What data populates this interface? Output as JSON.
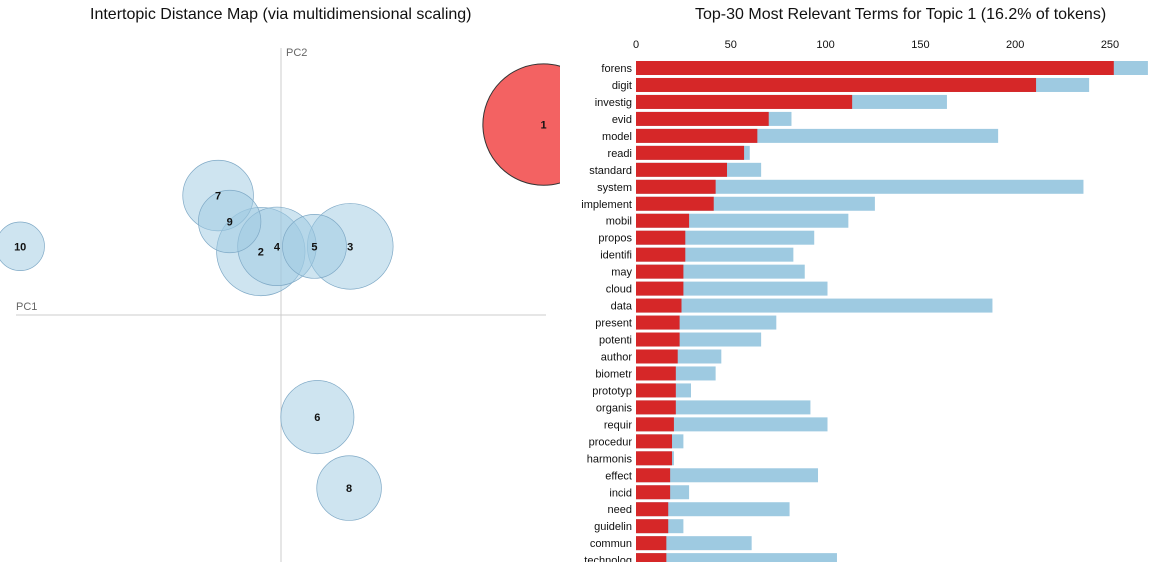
{
  "chart_data": [
    {
      "type": "scatter",
      "title": "Intertopic Distance Map (via multidimensional scaling)",
      "xlabel": "PC1",
      "ylabel": "PC2",
      "selected_topic": "1",
      "colors": {
        "bubble": "#9ecae1",
        "selected": "#f03b3b",
        "axis": "#cccccc"
      },
      "topics": [
        {
          "label": "1",
          "x": 0.455,
          "y": 0.33,
          "share": 16.2
        },
        {
          "label": "2",
          "x": -0.035,
          "y": 0.11,
          "share": 8.6
        },
        {
          "label": "3",
          "x": 0.12,
          "y": 0.119,
          "share": 8.1
        },
        {
          "label": "4",
          "x": -0.007,
          "y": 0.119,
          "share": 6.8
        },
        {
          "label": "5",
          "x": 0.058,
          "y": 0.119,
          "share": 4.5
        },
        {
          "label": "6",
          "x": 0.063,
          "y": -0.177,
          "share": 5.9
        },
        {
          "label": "7",
          "x": -0.109,
          "y": 0.207,
          "share": 5.5
        },
        {
          "label": "8",
          "x": 0.118,
          "y": -0.3,
          "share": 4.6
        },
        {
          "label": "9",
          "x": -0.089,
          "y": 0.162,
          "share": 4.3
        },
        {
          "label": "10",
          "x": -0.452,
          "y": 0.119,
          "share": 2.6
        }
      ]
    },
    {
      "type": "bar",
      "title": "Top-30 Most Relevant Terms for Topic 1 (16.2% of tokens)",
      "xlim": [
        0,
        270
      ],
      "ticks": [
        0,
        50,
        100,
        150,
        200,
        250
      ],
      "colors": {
        "topic": "#d62728",
        "overall": "#9ecae1"
      },
      "series": [
        {
          "name": "topic_frequency",
          "values": [
            252,
            211,
            114,
            70,
            64,
            57,
            48,
            42,
            41,
            28,
            26,
            26,
            25,
            25,
            24,
            23,
            23,
            22,
            21,
            21,
            21,
            20,
            19,
            19,
            18,
            18,
            17,
            17,
            16,
            16
          ]
        },
        {
          "name": "overall_frequency",
          "values": [
            270,
            239,
            164,
            82,
            191,
            60,
            66,
            236,
            126,
            112,
            94,
            83,
            89,
            101,
            188,
            74,
            66,
            45,
            42,
            29,
            92,
            101,
            25,
            20,
            96,
            28,
            81,
            25,
            61,
            106
          ]
        }
      ],
      "categories": [
        "forens",
        "digit",
        "investig",
        "evid",
        "model",
        "readi",
        "standard",
        "system",
        "implement",
        "mobil",
        "propos",
        "identifi",
        "may",
        "cloud",
        "data",
        "present",
        "potenti",
        "author",
        "biometr",
        "prototyp",
        "organis",
        "requir",
        "procedur",
        "harmonis",
        "effect",
        "incid",
        "need",
        "guidelin",
        "commun",
        "technolog"
      ]
    }
  ]
}
